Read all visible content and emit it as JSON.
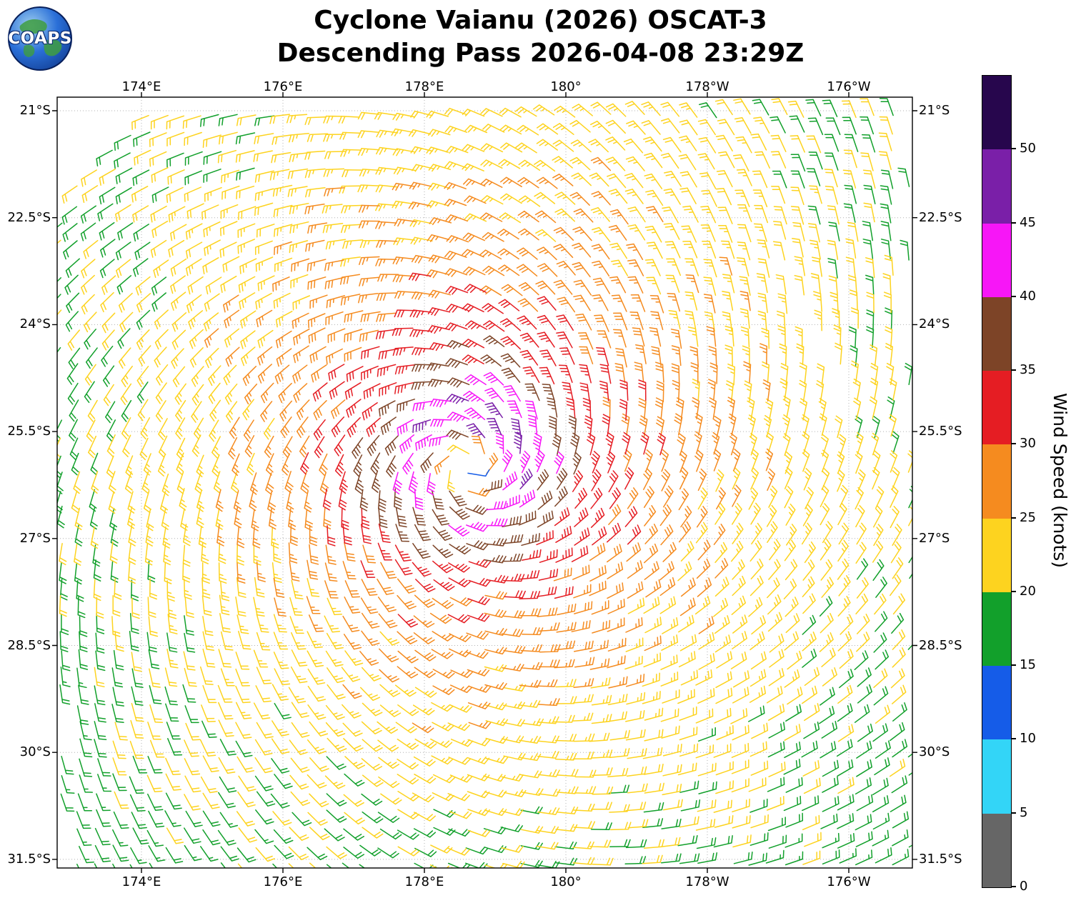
{
  "header": {
    "title_line1": "Cyclone Vaianu (2026) OSCAT-3",
    "title_line2": "Descending Pass 2026-04-08 23:29Z",
    "logo_text": "COAPS"
  },
  "chart_data": {
    "type": "wind_barb_map",
    "title": "Cyclone Vaianu (2026) OSCAT-3",
    "subtitle": "Descending Pass 2026-04-08 23:29Z",
    "x_axis": {
      "tick_lons_deg_east": [
        174,
        176,
        178,
        180,
        182,
        184
      ],
      "tick_labels": [
        "174°E",
        "176°E",
        "178°E",
        "180°",
        "178°W",
        "176°W"
      ],
      "range_deg_east": [
        172.8,
        184.9
      ]
    },
    "y_axis": {
      "tick_lats": [
        -21,
        -22.5,
        -24,
        -25.5,
        -27,
        -28.5,
        -30,
        -31.5
      ],
      "tick_labels": [
        "21°S",
        "22.5°S",
        "24°S",
        "25.5°S",
        "27°S",
        "28.5°S",
        "30°S",
        "31.5°S"
      ],
      "range": [
        -31.6,
        -20.8
      ]
    },
    "grid": "dotted",
    "colorbar": {
      "label": "Wind Speed (knots)",
      "tick_values": [
        0,
        5,
        10,
        15,
        20,
        25,
        30,
        35,
        40,
        45,
        50
      ],
      "tick_labels": [
        "0",
        "5",
        "10",
        "15",
        "20",
        "25",
        "30",
        "35",
        "40",
        "45",
        "50"
      ],
      "segment_bounds_knots": [
        0,
        5,
        10,
        15,
        20,
        25,
        30,
        35,
        40,
        45,
        50,
        55
      ],
      "segment_colors_bottom_to_top": [
        "#666666",
        "#33d5f7",
        "#155ce8",
        "#12a02b",
        "#fdd31f",
        "#f58b1f",
        "#e51d23",
        "#7d4427",
        "#f716f7",
        "#7a1fa8",
        "#27064d"
      ]
    },
    "wind_field_model_estimated": {
      "cyclone_name": "Vaianu",
      "center_lon_deg_east": 178.6,
      "center_lat": -26.0,
      "max_wind_knots": 44,
      "radius_of_max_wind_deg": 0.85,
      "rotation": "clockwise",
      "inflow_angle_deg": 20,
      "barb_spacing_deg": 0.25,
      "notes": "Wind barbs spiral clockwise (Southern Hemisphere) around the cyclone center near 178.6°E, 26°S; speeds peak ~40-47 kt (magenta/purple) in the eyewall ring, with a small weak-wind eye, decreasing outward through brown (35-40), red (30-35), orange (25-30), yellow (20-25) to green (15-20) and scattered blue (10-15) at the domain edges."
    }
  }
}
